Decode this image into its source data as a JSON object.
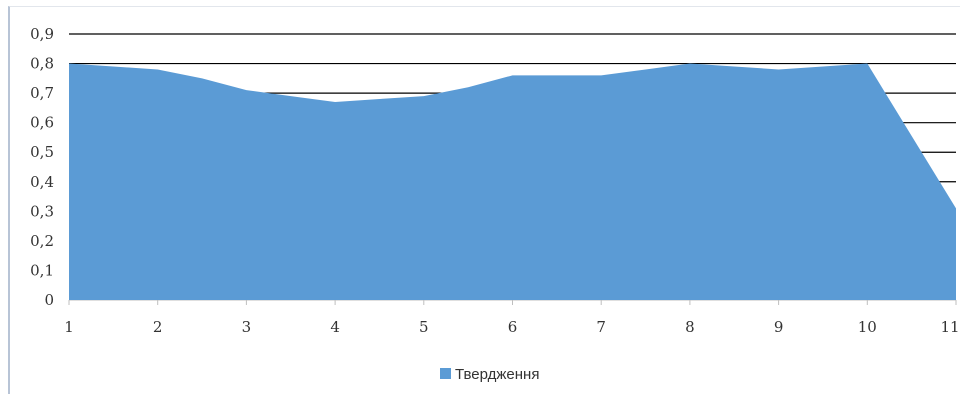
{
  "chart_data": {
    "type": "area",
    "x": [
      "1",
      "2",
      "3",
      "4",
      "5",
      "6",
      "7",
      "8",
      "9",
      "10",
      "11"
    ],
    "x_values": [
      1,
      1.5,
      2,
      2.5,
      3,
      3.5,
      4,
      4.5,
      5,
      5.5,
      6,
      6.5,
      7,
      7.5,
      8,
      8.5,
      9,
      9.5,
      10,
      11
    ],
    "series": [
      {
        "name": "Твердження",
        "color": "#5b9bd5",
        "values": [
          0.8,
          0.79,
          0.78,
          0.75,
          0.71,
          0.69,
          0.67,
          0.68,
          0.69,
          0.72,
          0.76,
          0.76,
          0.76,
          0.78,
          0.8,
          0.79,
          0.78,
          0.79,
          0.8,
          0.31
        ]
      }
    ],
    "y_ticks": [
      "0",
      "0,1",
      "0,2",
      "0,3",
      "0,4",
      "0,5",
      "0,6",
      "0,7",
      "0,8",
      "0,9"
    ],
    "ylim": [
      0,
      0.9
    ],
    "xlim": [
      1,
      11
    ],
    "grid": true,
    "legend_position": "bottom"
  },
  "legend": {
    "label": "Твердження"
  }
}
